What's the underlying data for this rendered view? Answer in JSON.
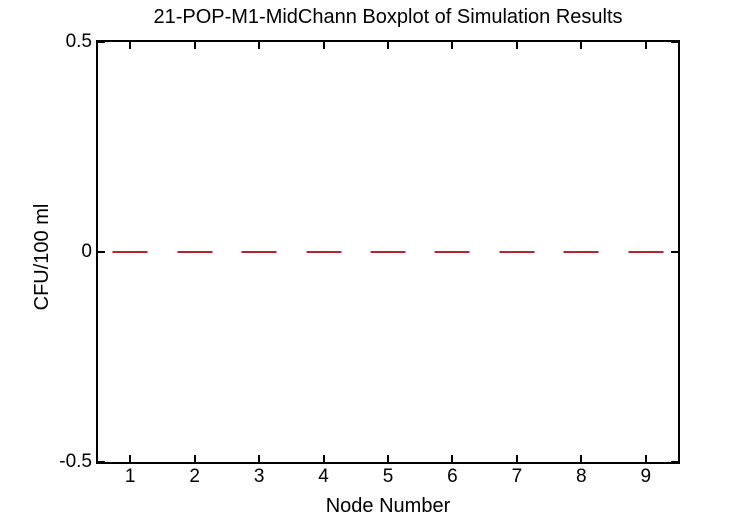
{
  "chart_data": {
    "type": "boxplot",
    "title": "21-POP-M1-MidChann Boxplot of Simulation Results",
    "xlabel": "Node Number",
    "ylabel": "CFU/100 ml",
    "categories": [
      "1",
      "2",
      "3",
      "4",
      "5",
      "6",
      "7",
      "8",
      "9"
    ],
    "series": [
      {
        "name": "median",
        "values": [
          0,
          0,
          0,
          0,
          0,
          0,
          0,
          0,
          0
        ]
      }
    ],
    "xlim": [
      0.5,
      9.5
    ],
    "ylim": [
      -0.5,
      0.5
    ],
    "yticks": [
      {
        "value": 0.5,
        "label": "0.5"
      },
      {
        "value": 0,
        "label": "0"
      },
      {
        "value": -0.5,
        "label": "-0.5"
      }
    ],
    "grid": false,
    "legend": null,
    "colors": {
      "median": "#b22631",
      "axis": "#000000",
      "text": "#000000",
      "background": "#ffffff"
    }
  }
}
